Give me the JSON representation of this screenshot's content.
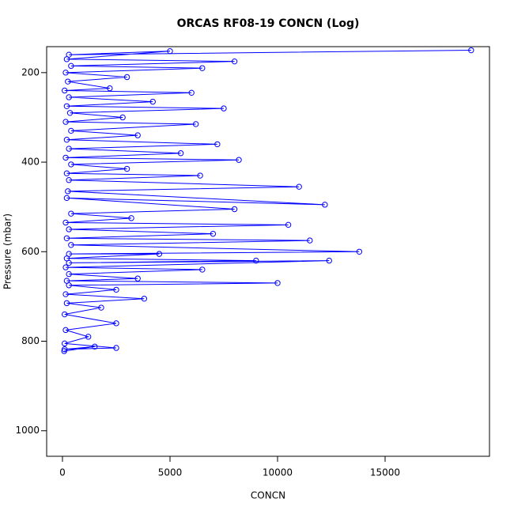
{
  "chart_data": {
    "type": "line",
    "title": "ORCAS RF08-19 CONCN (Log)",
    "x_label": "CONCN",
    "y_label": "Pressure (mbar)",
    "xlim": [
      -735,
      19853
    ],
    "xticks": [
      0,
      5000,
      10000,
      15000
    ],
    "ylim": [
      142,
      1057
    ],
    "yticks": [
      200,
      400,
      600,
      800,
      1000
    ],
    "y_reversed": true,
    "markers": "circle",
    "series": [
      {
        "color": "#0000ff",
        "x": [
          19000,
          300,
          5000,
          200,
          8000,
          400,
          6500,
          150,
          3000,
          250,
          2200,
          100,
          6000,
          300,
          4200,
          200,
          7500,
          350,
          2800,
          150,
          6200,
          400,
          3500,
          200,
          7200,
          300,
          5500,
          150,
          8200,
          400,
          3000,
          200,
          6400,
          300,
          11000,
          250,
          12200,
          200,
          8000,
          400,
          3200,
          150,
          10500,
          300,
          7000,
          200,
          11500,
          400,
          13800,
          300,
          4500,
          200,
          9000,
          300,
          12400,
          150,
          6500,
          300,
          3500,
          200,
          10000,
          300,
          2500,
          150,
          3800,
          200,
          1800,
          100,
          2500,
          150,
          1200,
          100,
          2500,
          100,
          1500,
          80
        ],
        "y": [
          150,
          160,
          152,
          170,
          175,
          185,
          190,
          200,
          210,
          220,
          235,
          240,
          245,
          255,
          265,
          275,
          280,
          290,
          300,
          310,
          315,
          330,
          340,
          350,
          360,
          370,
          380,
          390,
          395,
          405,
          415,
          425,
          430,
          440,
          455,
          465,
          495,
          480,
          505,
          515,
          525,
          535,
          540,
          550,
          560,
          570,
          575,
          585,
          600,
          605,
          605,
          615,
          620,
          625,
          620,
          635,
          640,
          650,
          660,
          665,
          670,
          675,
          685,
          695,
          705,
          715,
          725,
          740,
          760,
          775,
          790,
          805,
          815,
          818,
          812,
          822
        ]
      }
    ]
  }
}
